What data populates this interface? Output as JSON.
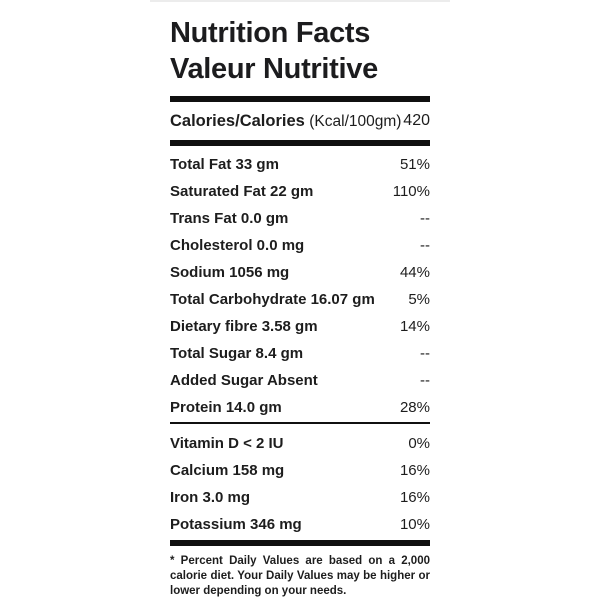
{
  "title": {
    "line1": "Nutrition Facts",
    "line2": "Valeur Nutritive"
  },
  "calories": {
    "label": "Calories/Calories",
    "unit": "(Kcal/100gm)",
    "value": "420"
  },
  "nutrients": [
    {
      "label": "Total Fat 33 gm",
      "value": "51%"
    },
    {
      "label": "Saturated Fat 22 gm",
      "value": "110%"
    },
    {
      "label": "Trans Fat 0.0 gm",
      "value": "--"
    },
    {
      "label": "Cholesterol 0.0 mg",
      "value": "--"
    },
    {
      "label": "Sodium 1056 mg",
      "value": "44%"
    },
    {
      "label": "Total Carbohydrate 16.07 gm",
      "value": "5%"
    },
    {
      "label": "Dietary fibre 3.58 gm",
      "value": "14%"
    },
    {
      "label": "Total Sugar 8.4 gm",
      "value": "--"
    },
    {
      "label": "Added Sugar Absent",
      "value": "--"
    },
    {
      "label": "Protein 14.0 gm",
      "value": "28%"
    }
  ],
  "micronutrients": [
    {
      "label": "Vitamin D < 2 IU",
      "value": "0%"
    },
    {
      "label": "Calcium 158 mg",
      "value": "16%"
    },
    {
      "label": "Iron 3.0 mg",
      "value": "16%"
    },
    {
      "label": "Potassium 346 mg",
      "value": "10%"
    }
  ],
  "footnote": "* Percent Daily Values are based on a 2,000 calorie diet. Your Daily Values may be higher or lower depending on your needs.",
  "colors": {
    "text": "#1d1d1d",
    "bar": "#101010",
    "top_border": "#ececec"
  }
}
